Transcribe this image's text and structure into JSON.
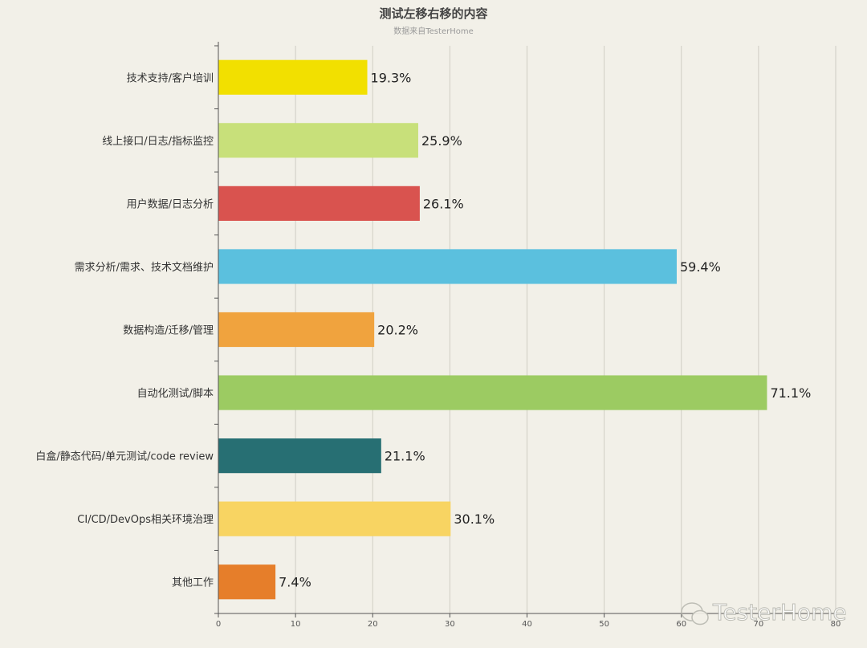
{
  "chart_data": {
    "type": "bar",
    "orientation": "horizontal",
    "title": "测试左移右移的内容",
    "subtitle": "数据来自TesterHome",
    "categories": [
      "技术支持/客户培训",
      "线上接口/日志/指标监控",
      "用户数据/日志分析",
      "需求分析/需求、技术文档维护",
      "数据构造/迁移/管理",
      "自动化测试/脚本",
      "白盒/静态代码/单元测试/code review",
      "CI/CD/DevOps相关环境治理",
      "其他工作"
    ],
    "values": [
      19.3,
      25.9,
      26.1,
      59.4,
      20.2,
      71.1,
      21.1,
      30.1,
      7.4
    ],
    "value_labels": [
      "19.3%",
      "25.9%",
      "26.1%",
      "59.4%",
      "20.2%",
      "71.1%",
      "21.1%",
      "30.1%",
      "7.4%"
    ],
    "colors": [
      "#f2e000",
      "#c8e07a",
      "#d9534f",
      "#5bc0de",
      "#f0a33e",
      "#9ccb62",
      "#276f73",
      "#f8d462",
      "#e67e2a"
    ],
    "xlim": [
      0,
      80
    ],
    "xticks": [
      0,
      10,
      20,
      30,
      40,
      50,
      60,
      70,
      80
    ],
    "grid": true,
    "legend": "none"
  },
  "watermark": {
    "text": "TesterHome",
    "icon": "wechat-icon"
  }
}
